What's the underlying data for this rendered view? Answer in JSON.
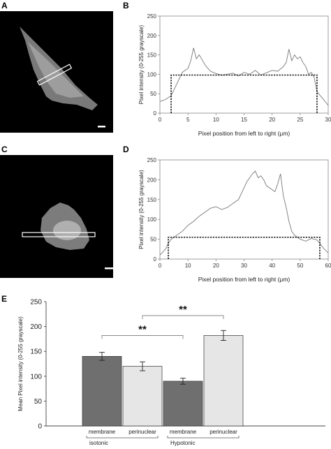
{
  "panels": {
    "a": {
      "letter": "A"
    },
    "b": {
      "letter": "B"
    },
    "c": {
      "letter": "C"
    },
    "d": {
      "letter": "D"
    },
    "e": {
      "letter": "E"
    }
  },
  "colors": {
    "micrograph_bg": "#000000",
    "cell_fill": "#9a9a9a",
    "profile_line": "#777777",
    "baseline_box": "#111111",
    "bar_membrane": "#6f6f6f",
    "bar_perinuclear": "#e6e6e6",
    "bar_outline": "#333333"
  },
  "chart_data": [
    {
      "panel": "B",
      "type": "line",
      "xlabel": "Pixel position from left to right (μm)",
      "ylabel": "Pixel intensity (0-255 grayscale)",
      "xlim": [
        0,
        30
      ],
      "ylim": [
        0,
        250
      ],
      "xticks": [
        "0",
        "5",
        "10",
        "15",
        "20",
        "25",
        "30"
      ],
      "yticks": [
        "0",
        "50",
        "100",
        "150",
        "200",
        "250"
      ],
      "baseline": {
        "x_start": 2,
        "x_end": 28,
        "level": 98
      },
      "series": [
        {
          "x": [
            0,
            1,
            2,
            2.5,
            3,
            3.5,
            4,
            4.5,
            5,
            5.5,
            6,
            6.5,
            7,
            7.5,
            8,
            9,
            10,
            11,
            12,
            13,
            14,
            15,
            16,
            17,
            18,
            19,
            20,
            21,
            22,
            22.5,
            23,
            23.5,
            24,
            24.5,
            25,
            25.5,
            26,
            26.5,
            27,
            27.5,
            28,
            29,
            30
          ],
          "y": [
            30,
            35,
            45,
            60,
            75,
            90,
            105,
            110,
            115,
            135,
            168,
            140,
            150,
            138,
            125,
            108,
            102,
            98,
            100,
            103,
            96,
            105,
            100,
            110,
            98,
            104,
            110,
            108,
            120,
            130,
            165,
            135,
            150,
            140,
            145,
            130,
            120,
            100,
            105,
            92,
            55,
            38,
            20
          ]
        }
      ]
    },
    {
      "panel": "D",
      "type": "line",
      "xlabel": "Pixel position from left to right (μm)",
      "ylabel": "Pixel intensity (0-255 grayscale)",
      "xlim": [
        0,
        60
      ],
      "ylim": [
        0,
        250
      ],
      "xticks": [
        "0",
        "10",
        "20",
        "30",
        "40",
        "50",
        "60"
      ],
      "yticks": [
        "0",
        "50",
        "100",
        "150",
        "200",
        "250"
      ],
      "baseline": {
        "x_start": 3,
        "x_end": 57,
        "level": 55
      },
      "series": [
        {
          "x": [
            0,
            2,
            3,
            4,
            6,
            8,
            10,
            12,
            14,
            16,
            18,
            20,
            22,
            24,
            26,
            28,
            30,
            31,
            32,
            33,
            34,
            35,
            36,
            37,
            38,
            39,
            40,
            41,
            42,
            43,
            44,
            45,
            46,
            47,
            48,
            50,
            52,
            54,
            56,
            57,
            58,
            60
          ],
          "y": [
            10,
            25,
            40,
            50,
            60,
            70,
            85,
            95,
            108,
            118,
            128,
            132,
            125,
            130,
            140,
            150,
            180,
            195,
            205,
            215,
            222,
            205,
            210,
            200,
            185,
            180,
            175,
            170,
            190,
            215,
            160,
            130,
            95,
            70,
            60,
            50,
            45,
            52,
            48,
            40,
            30,
            15
          ]
        }
      ]
    },
    {
      "panel": "E",
      "type": "bar",
      "ylabel": "Mean Pixel intensity (0-255 grayscale)",
      "ylim": [
        0,
        250
      ],
      "yticks": [
        "0",
        "50",
        "100",
        "150",
        "200",
        "250"
      ],
      "categories": [
        "membrane",
        "perinuclear",
        "membrane",
        "perinuclear"
      ],
      "groups": [
        "isotonic",
        "Hypotonic"
      ],
      "values": [
        140,
        120,
        90,
        182
      ],
      "errors": [
        8,
        9,
        6,
        10
      ],
      "significance": [
        {
          "from": 0,
          "to": 2,
          "label": "**"
        },
        {
          "from": 1,
          "to": 3,
          "label": "**"
        }
      ]
    }
  ]
}
